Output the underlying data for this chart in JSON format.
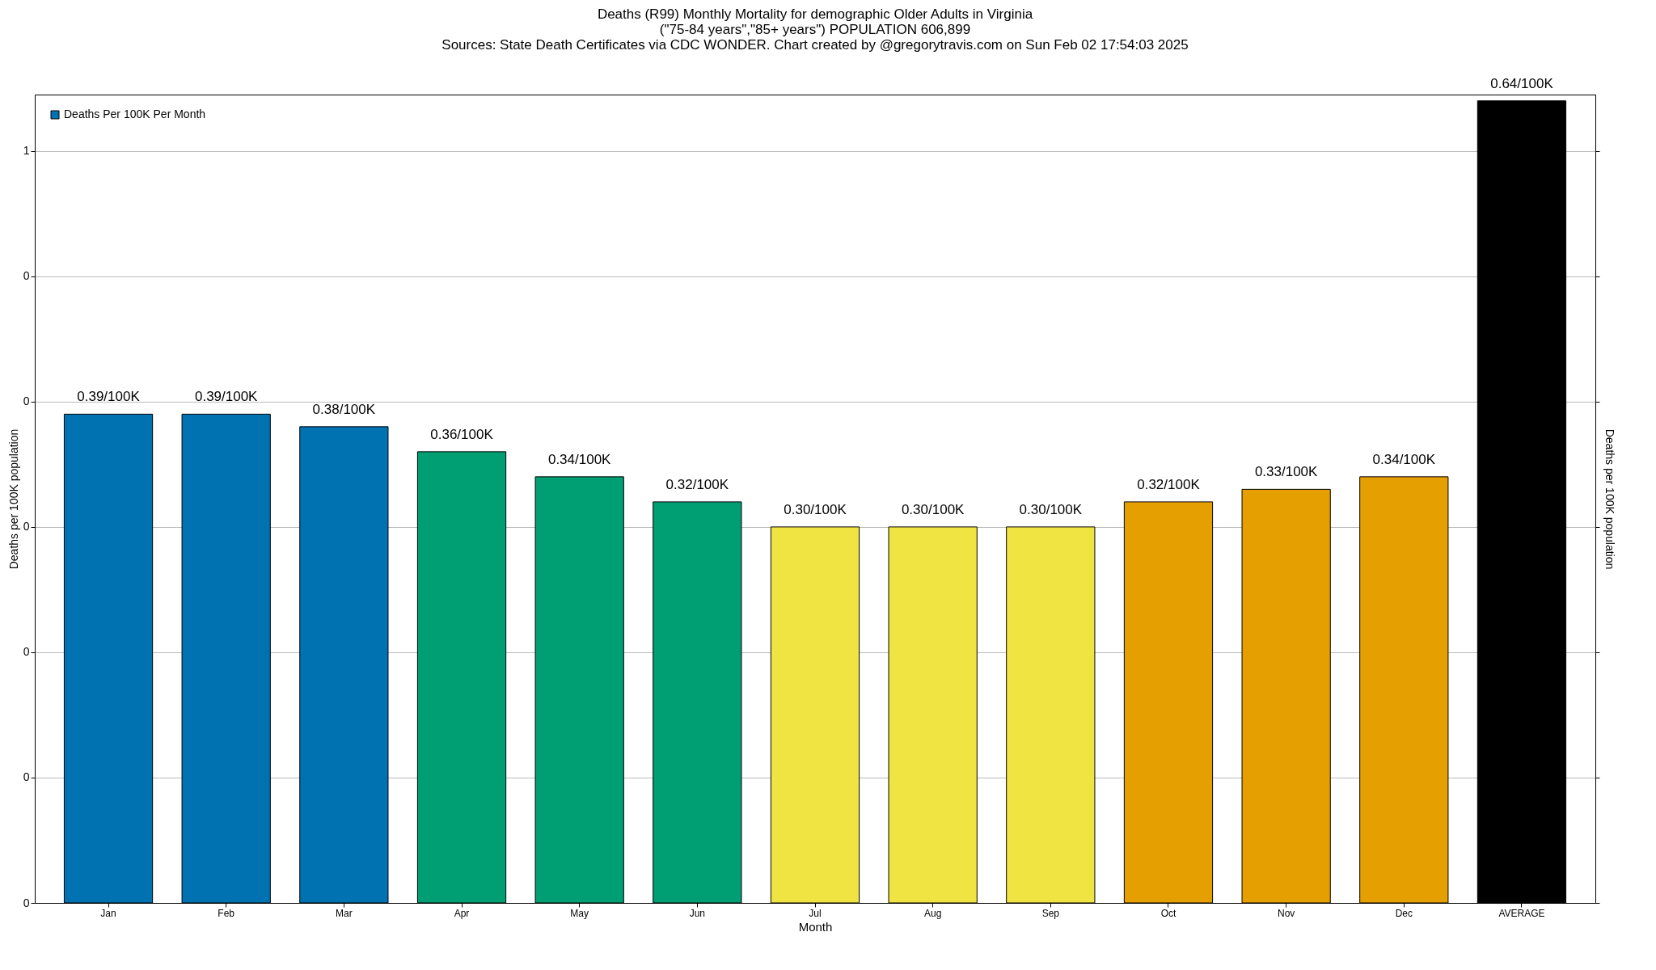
{
  "chart_data": {
    "type": "bar",
    "title": "Deaths (R99) Monthly Mortality for demographic Older Adults in Virginia",
    "subtitle": "(\"75-84 years\",\"85+ years\") POPULATION 606,899",
    "annotations": [
      "Sources: State Death Certificates via CDC WONDER.                Chart created by @gregorytravis.com on Sun Feb 02 17:54:03 2025"
    ],
    "xlabel": "Month",
    "ylabel": "Deaths per 100K population",
    "y2label": "Deaths per 100K population",
    "categories": [
      "Jan",
      "Feb",
      "Mar",
      "Apr",
      "May",
      "Jun",
      "Jul",
      "Aug",
      "Sep",
      "Oct",
      "Nov",
      "Dec",
      "AVERAGE"
    ],
    "series": [
      {
        "name": "Deaths Per 100K Per Month",
        "values": [
          0.39,
          0.39,
          0.38,
          0.36,
          0.34,
          0.32,
          0.3,
          0.3,
          0.3,
          0.32,
          0.33,
          0.34,
          0.64
        ]
      }
    ],
    "colors": [
      "#0072b2",
      "#0072b2",
      "#0072b2",
      "#009e73",
      "#009e73",
      "#009e73",
      "#f0e442",
      "#f0e442",
      "#f0e442",
      "#e69f00",
      "#e69f00",
      "#e69f00",
      "#000000"
    ],
    "value_labels": [
      "0.39/100K",
      "0.39/100K",
      "0.38/100K",
      "0.36/100K",
      "0.34/100K",
      "0.32/100K",
      "0.30/100K",
      "0.30/100K",
      "0.30/100K",
      "0.32/100K",
      "0.33/100K",
      "0.34/100K",
      "0.64/100K"
    ],
    "ylim": [
      0,
      0.645
    ],
    "yticks": [
      {
        "value": 0,
        "label": "0"
      },
      {
        "value": 0.1,
        "label": "0"
      },
      {
        "value": 0.2,
        "label": "0"
      },
      {
        "value": 0.3,
        "label": "0"
      },
      {
        "value": 0.4,
        "label": "0"
      },
      {
        "value": 0.5,
        "label": "0"
      },
      {
        "value": 0.6,
        "label": "1"
      }
    ],
    "grid": "y",
    "legend": "top left"
  }
}
